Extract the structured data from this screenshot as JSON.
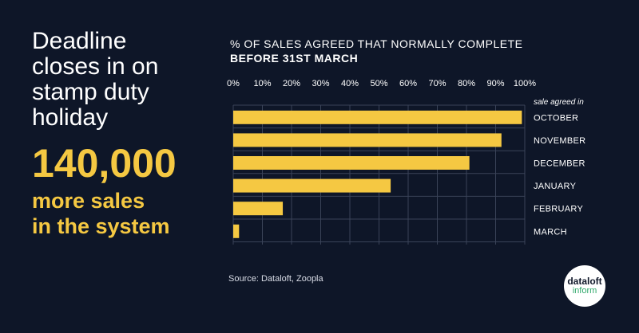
{
  "headline": {
    "lines": [
      "Deadline",
      "closes in on",
      "stamp duty",
      "holiday"
    ]
  },
  "big_number": "140,000",
  "subheadline": {
    "lines": [
      "more sales",
      "in the system"
    ]
  },
  "chart_header": {
    "line1": "% OF SALES AGREED THAT NORMALLY COMPLETE",
    "line2": "BEFORE 31ST MARCH"
  },
  "source": "Source:  Dataloft, Zoopla",
  "logo": {
    "line1": "dataloft",
    "line2": "inform"
  },
  "colors": {
    "background": "#0e1628",
    "accent": "#f5c842",
    "grid": "#3a4358",
    "text": "#ffffff"
  },
  "chart_data": {
    "type": "bar",
    "orientation": "horizontal",
    "title": "% OF SALES AGREED THAT NORMALLY COMPLETE BEFORE 31ST MARCH",
    "category_axis_label": "sale agreed in",
    "categories": [
      "OCTOBER",
      "NOVEMBER",
      "DECEMBER",
      "JANUARY",
      "FEBRUARY",
      "MARCH"
    ],
    "values": [
      99,
      92,
      81,
      54,
      17,
      2
    ],
    "xlim": [
      0,
      100
    ],
    "xticks": [
      0,
      10,
      20,
      30,
      40,
      50,
      60,
      70,
      80,
      90,
      100
    ],
    "xtick_labels": [
      "0%",
      "10%",
      "20%",
      "30%",
      "40%",
      "50%",
      "60%",
      "70%",
      "80%",
      "90%",
      "100%"
    ],
    "grid": true,
    "bar_color": "#f5c842"
  }
}
